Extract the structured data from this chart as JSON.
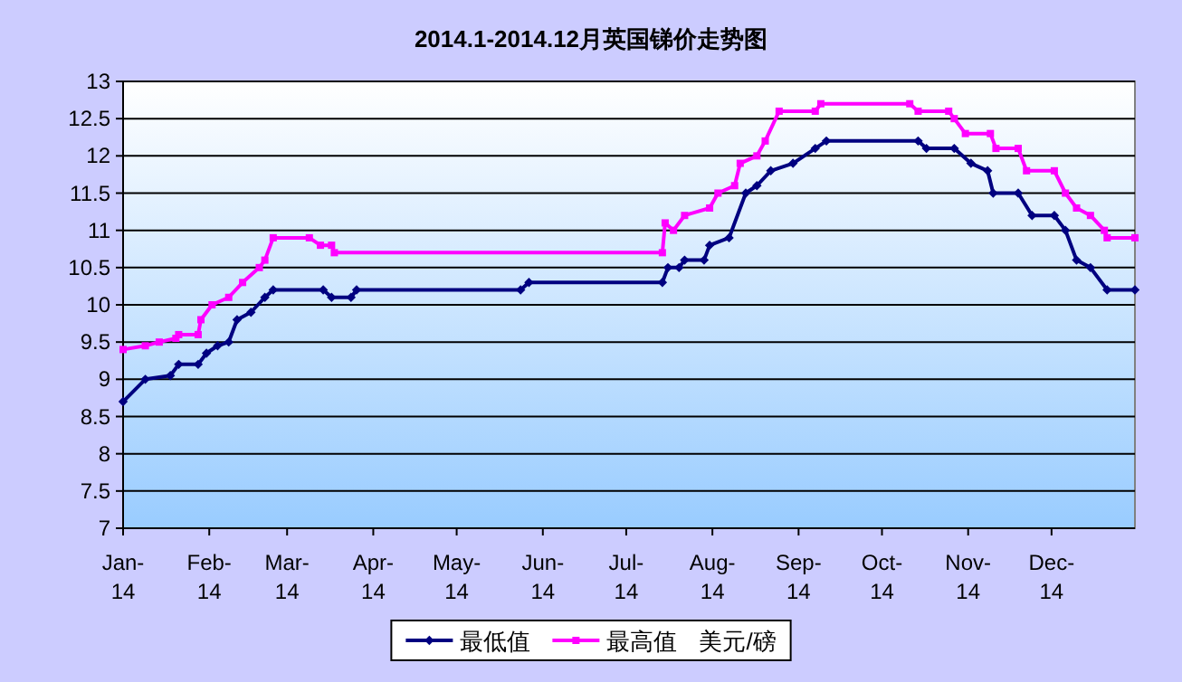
{
  "chart_data": {
    "type": "line",
    "title": "2014.1-2014.12月英国锑价走势图",
    "annotations": [
      "美元/磅"
    ],
    "xlim": [
      "2014-01-01",
      "2014-12-31"
    ],
    "xticks": [
      {
        "value": "2014-01-01",
        "label": "Jan-14"
      },
      {
        "value": "2014-02-01",
        "label": "Feb-14"
      },
      {
        "value": "2014-03-01",
        "label": "Mar-14"
      },
      {
        "value": "2014-04-01",
        "label": "Apr-14"
      },
      {
        "value": "2014-05-01",
        "label": "May-14"
      },
      {
        "value": "2014-06-01",
        "label": "Jun-14"
      },
      {
        "value": "2014-07-01",
        "label": "Jul-14"
      },
      {
        "value": "2014-08-01",
        "label": "Aug-14"
      },
      {
        "value": "2014-09-01",
        "label": "Sep-14"
      },
      {
        "value": "2014-10-01",
        "label": "Oct-14"
      },
      {
        "value": "2014-11-01",
        "label": "Nov-14"
      },
      {
        "value": "2014-12-01",
        "label": "Dec-14"
      }
    ],
    "ylim": [
      7,
      13
    ],
    "yticks": [
      7,
      7.5,
      8,
      8.5,
      9,
      9.5,
      10,
      10.5,
      11,
      11.5,
      12,
      12.5,
      13
    ],
    "grid": "y",
    "legend": "bottom",
    "line_style": "solid",
    "series": [
      {
        "name": "最低值",
        "color": "#000080",
        "marker": "diamond",
        "x": [
          "2014-01-01",
          "2014-01-09",
          "2014-01-18",
          "2014-01-21",
          "2014-01-28",
          "2014-01-31",
          "2014-02-04",
          "2014-02-08",
          "2014-02-11",
          "2014-02-16",
          "2014-02-21",
          "2014-02-24",
          "2014-03-14",
          "2014-03-17",
          "2014-03-24",
          "2014-03-26",
          "2014-05-24",
          "2014-05-27",
          "2014-07-14",
          "2014-07-16",
          "2014-07-20",
          "2014-07-22",
          "2014-07-29",
          "2014-07-31",
          "2014-08-07",
          "2014-08-13",
          "2014-08-17",
          "2014-08-22",
          "2014-08-30",
          "2014-09-07",
          "2014-09-11",
          "2014-10-14",
          "2014-10-17",
          "2014-10-27",
          "2014-11-02",
          "2014-11-08",
          "2014-11-10",
          "2014-11-19",
          "2014-11-24",
          "2014-12-02",
          "2014-12-06",
          "2014-12-10",
          "2014-12-15",
          "2014-12-21",
          "2014-12-31"
        ],
        "values": [
          8.7,
          9.0,
          9.05,
          9.2,
          9.2,
          9.35,
          9.45,
          9.5,
          9.8,
          9.9,
          10.1,
          10.2,
          10.2,
          10.1,
          10.1,
          10.2,
          10.2,
          10.3,
          10.3,
          10.5,
          10.5,
          10.6,
          10.6,
          10.8,
          10.9,
          11.5,
          11.6,
          11.8,
          11.9,
          12.1,
          12.2,
          12.2,
          12.1,
          12.1,
          11.9,
          11.8,
          11.5,
          11.5,
          11.2,
          11.2,
          11.0,
          10.6,
          10.5,
          10.2,
          10.2
        ]
      },
      {
        "name": "最高值",
        "color": "#ff00ff",
        "marker": "square",
        "x": [
          "2014-01-01",
          "2014-01-09",
          "2014-01-14",
          "2014-01-20",
          "2014-01-21",
          "2014-01-28",
          "2014-01-29",
          "2014-02-02",
          "2014-02-08",
          "2014-02-13",
          "2014-02-19",
          "2014-02-21",
          "2014-02-24",
          "2014-03-09",
          "2014-03-13",
          "2014-03-17",
          "2014-03-18",
          "2014-07-14",
          "2014-07-15",
          "2014-07-18",
          "2014-07-22",
          "2014-07-31",
          "2014-08-03",
          "2014-08-09",
          "2014-08-11",
          "2014-08-17",
          "2014-08-20",
          "2014-08-25",
          "2014-09-07",
          "2014-09-09",
          "2014-10-11",
          "2014-10-14",
          "2014-10-25",
          "2014-10-27",
          "2014-10-31",
          "2014-11-09",
          "2014-11-11",
          "2014-11-19",
          "2014-11-22",
          "2014-12-02",
          "2014-12-06",
          "2014-12-10",
          "2014-12-15",
          "2014-12-20",
          "2014-12-21",
          "2014-12-31"
        ],
        "values": [
          9.4,
          9.45,
          9.5,
          9.55,
          9.6,
          9.6,
          9.8,
          10.0,
          10.1,
          10.3,
          10.5,
          10.6,
          10.9,
          10.9,
          10.8,
          10.8,
          10.7,
          10.7,
          11.1,
          11.0,
          11.2,
          11.3,
          11.5,
          11.6,
          11.9,
          12.0,
          12.2,
          12.6,
          12.6,
          12.7,
          12.7,
          12.6,
          12.6,
          12.5,
          12.3,
          12.3,
          12.1,
          12.1,
          11.8,
          11.8,
          11.5,
          11.3,
          11.2,
          11.0,
          10.9,
          10.9
        ]
      }
    ]
  }
}
